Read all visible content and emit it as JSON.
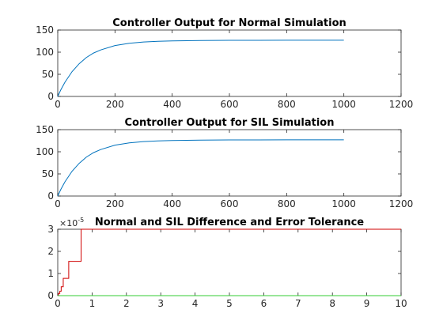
{
  "colors": {
    "normal": "#0072bd",
    "sil": "#0072bd",
    "difference": "#d00000",
    "tolerance": "#33cc33",
    "axis": "#262626"
  },
  "chart_data": [
    {
      "type": "line",
      "title": "Controller Output for Normal Simulation",
      "xlim": [
        0,
        1200
      ],
      "ylim": [
        0,
        150
      ],
      "xticks": [
        "0",
        "200",
        "400",
        "600",
        "800",
        "1000",
        "1200"
      ],
      "yticks": [
        "0",
        "50",
        "100",
        "150"
      ],
      "series": [
        {
          "x": [
            0,
            10,
            25,
            50,
            75,
            100,
            125,
            150,
            200,
            250,
            300,
            350,
            400,
            450,
            500,
            600,
            700,
            800,
            900,
            1000
          ],
          "y": [
            0,
            14,
            32,
            56,
            74,
            88,
            98,
            105,
            115,
            120,
            123,
            124.5,
            125.5,
            126,
            126.3,
            126.7,
            126.9,
            127,
            127,
            127
          ]
        }
      ]
    },
    {
      "type": "line",
      "title": "Controller Output for SIL Simulation",
      "xlim": [
        0,
        1200
      ],
      "ylim": [
        0,
        150
      ],
      "xticks": [
        "0",
        "200",
        "400",
        "600",
        "800",
        "1000",
        "1200"
      ],
      "yticks": [
        "0",
        "50",
        "100",
        "150"
      ],
      "series": [
        {
          "x": [
            0,
            10,
            25,
            50,
            75,
            100,
            125,
            150,
            200,
            250,
            300,
            350,
            400,
            450,
            500,
            600,
            700,
            800,
            900,
            1000
          ],
          "y": [
            0,
            14,
            32,
            56,
            74,
            88,
            98,
            105,
            115,
            120,
            123,
            124.5,
            125.5,
            126,
            126.3,
            126.7,
            126.9,
            127,
            127,
            127
          ]
        }
      ]
    },
    {
      "type": "line",
      "title": "Normal and SIL Difference and Error Tolerance",
      "xlim": [
        0,
        10
      ],
      "ylim": [
        0,
        3
      ],
      "y_exponent": "-5",
      "xticks": [
        "0",
        "1",
        "2",
        "3",
        "4",
        "5",
        "6",
        "7",
        "8",
        "9",
        "10"
      ],
      "yticks": [
        "0",
        "1",
        "2",
        "3"
      ],
      "series": [
        {
          "x": [
            0,
            0.02,
            0.02,
            0.06,
            0.06,
            0.1,
            0.1,
            0.16,
            0.16,
            0.32,
            0.32,
            0.68,
            0.68,
            10
          ],
          "y": [
            0,
            0,
            0.1,
            0.1,
            0.2,
            0.2,
            0.4,
            0.4,
            0.78,
            0.78,
            1.55,
            1.55,
            3,
            3
          ]
        },
        {
          "x": [
            0,
            10
          ],
          "y": [
            0,
            0
          ]
        }
      ]
    }
  ]
}
